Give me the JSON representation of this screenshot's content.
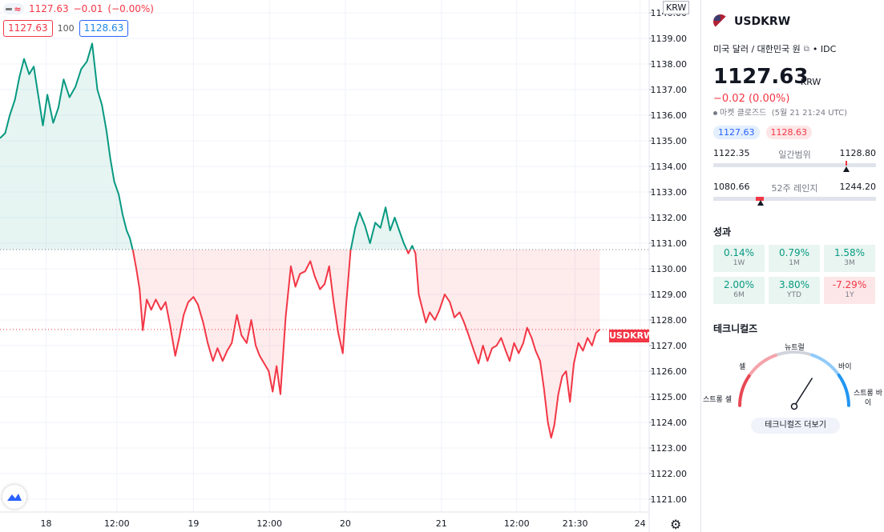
{
  "symbol": "USDKRW",
  "legend": {
    "price": "1127.63",
    "change": "−0.01",
    "change_pct": "(−0.00%)"
  },
  "quotes": {
    "bid": "1127.63",
    "size": "100",
    "ask": "1128.63"
  },
  "price_label": "USDKRW",
  "currency_label": "KRW",
  "colors": {
    "up": "#089981",
    "down": "#f23645",
    "bid_blue": "#2962ff"
  },
  "chart_data": {
    "type": "line",
    "baseline": 1130.75,
    "last_price": 1127.63,
    "ylim": [
      1120.5,
      1140.5
    ],
    "y_ticks": [
      "1121.00",
      "1122.00",
      "1123.00",
      "1124.00",
      "1125.00",
      "1126.00",
      "1127.00",
      "1128.00",
      "1129.00",
      "1130.00",
      "1131.00",
      "1132.00",
      "1133.00",
      "1134.00",
      "1135.00",
      "1136.00",
      "1137.00",
      "1138.00",
      "1139.00",
      "1140.00"
    ],
    "x_ticks": [
      "18",
      "12:00",
      "19",
      "12:00",
      "20",
      "21",
      "12:00",
      "21:30",
      "24"
    ],
    "x_range": [
      0,
      100
    ],
    "x_tick_positions": [
      7.1,
      18.0,
      29.8,
      41.5,
      53.2,
      68.0,
      79.6,
      88.6,
      98.6
    ],
    "points": [
      [
        0,
        1135.1
      ],
      [
        0.8,
        1135.3
      ],
      [
        1.5,
        1136.0
      ],
      [
        2.3,
        1136.6
      ],
      [
        3.0,
        1137.5
      ],
      [
        3.7,
        1138.2
      ],
      [
        4.5,
        1137.6
      ],
      [
        5.2,
        1137.9
      ],
      [
        6.0,
        1136.6
      ],
      [
        6.6,
        1135.6
      ],
      [
        7.3,
        1136.8
      ],
      [
        8.2,
        1135.7
      ],
      [
        9.0,
        1136.3
      ],
      [
        9.8,
        1137.4
      ],
      [
        10.7,
        1136.7
      ],
      [
        11.6,
        1137.1
      ],
      [
        12.5,
        1137.8
      ],
      [
        13.4,
        1138.1
      ],
      [
        14.2,
        1138.8
      ],
      [
        15.0,
        1137.0
      ],
      [
        15.7,
        1136.4
      ],
      [
        16.4,
        1135.4
      ],
      [
        17.0,
        1134.3
      ],
      [
        17.6,
        1133.4
      ],
      [
        18.3,
        1132.9
      ],
      [
        18.9,
        1132.1
      ],
      [
        19.5,
        1131.5
      ],
      [
        20.0,
        1131.2
      ],
      [
        20.5,
        1130.7
      ],
      [
        21.0,
        1130.0
      ],
      [
        21.5,
        1129.2
      ],
      [
        22.0,
        1127.6
      ],
      [
        22.6,
        1128.8
      ],
      [
        23.3,
        1128.4
      ],
      [
        24.0,
        1128.8
      ],
      [
        24.8,
        1128.4
      ],
      [
        25.5,
        1128.7
      ],
      [
        26.2,
        1127.8
      ],
      [
        27.0,
        1126.6
      ],
      [
        27.6,
        1127.3
      ],
      [
        28.3,
        1128.2
      ],
      [
        29.0,
        1128.7
      ],
      [
        29.8,
        1128.9
      ],
      [
        30.5,
        1128.6
      ],
      [
        31.3,
        1127.9
      ],
      [
        32.0,
        1127.1
      ],
      [
        32.8,
        1126.4
      ],
      [
        33.5,
        1126.9
      ],
      [
        34.3,
        1126.4
      ],
      [
        35.0,
        1126.8
      ],
      [
        35.7,
        1127.1
      ],
      [
        36.5,
        1128.2
      ],
      [
        37.2,
        1127.4
      ],
      [
        38.0,
        1127.1
      ],
      [
        38.7,
        1128.0
      ],
      [
        39.4,
        1127.0
      ],
      [
        40.0,
        1126.6
      ],
      [
        40.7,
        1126.3
      ],
      [
        41.4,
        1126.0
      ],
      [
        42.0,
        1125.2
      ],
      [
        42.6,
        1126.2
      ],
      [
        43.2,
        1125.1
      ],
      [
        44.0,
        1128.1
      ],
      [
        44.8,
        1130.1
      ],
      [
        45.5,
        1129.3
      ],
      [
        46.2,
        1129.8
      ],
      [
        47.0,
        1129.9
      ],
      [
        47.8,
        1130.3
      ],
      [
        48.5,
        1129.7
      ],
      [
        49.3,
        1129.2
      ],
      [
        50.0,
        1129.4
      ],
      [
        50.7,
        1130.1
      ],
      [
        51.4,
        1128.7
      ],
      [
        52.1,
        1127.5
      ],
      [
        52.8,
        1126.7
      ],
      [
        53.3,
        1128.5
      ],
      [
        54.0,
        1130.7
      ],
      [
        54.7,
        1131.6
      ],
      [
        55.4,
        1132.2
      ],
      [
        56.2,
        1131.7
      ],
      [
        57.0,
        1131.0
      ],
      [
        57.8,
        1131.8
      ],
      [
        58.6,
        1131.6
      ],
      [
        59.4,
        1132.4
      ],
      [
        60.1,
        1131.5
      ],
      [
        60.8,
        1132.0
      ],
      [
        61.5,
        1131.5
      ],
      [
        62.2,
        1131.0
      ],
      [
        62.9,
        1130.6
      ],
      [
        63.5,
        1130.9
      ],
      [
        64.0,
        1130.6
      ],
      [
        64.5,
        1129.0
      ],
      [
        65.0,
        1128.5
      ],
      [
        65.6,
        1127.9
      ],
      [
        66.2,
        1128.3
      ],
      [
        67.0,
        1128.0
      ],
      [
        67.7,
        1128.4
      ],
      [
        68.5,
        1129.0
      ],
      [
        69.3,
        1128.7
      ],
      [
        70.0,
        1128.1
      ],
      [
        70.8,
        1128.3
      ],
      [
        71.5,
        1127.9
      ],
      [
        72.2,
        1127.4
      ],
      [
        73.0,
        1126.8
      ],
      [
        73.7,
        1126.3
      ],
      [
        74.4,
        1127.0
      ],
      [
        75.1,
        1126.4
      ],
      [
        75.8,
        1126.9
      ],
      [
        76.5,
        1127.0
      ],
      [
        77.2,
        1127.3
      ],
      [
        77.9,
        1126.8
      ],
      [
        78.5,
        1126.4
      ],
      [
        79.2,
        1127.1
      ],
      [
        79.9,
        1126.7
      ],
      [
        80.6,
        1127.1
      ],
      [
        81.2,
        1127.7
      ],
      [
        81.9,
        1127.3
      ],
      [
        82.5,
        1126.8
      ],
      [
        83.2,
        1126.4
      ],
      [
        83.8,
        1125.3
      ],
      [
        84.4,
        1124.0
      ],
      [
        84.9,
        1123.4
      ],
      [
        85.4,
        1123.9
      ],
      [
        86.0,
        1125.1
      ],
      [
        86.6,
        1125.8
      ],
      [
        87.2,
        1126.0
      ],
      [
        87.8,
        1124.8
      ],
      [
        88.4,
        1126.3
      ],
      [
        89.1,
        1127.1
      ],
      [
        89.8,
        1126.8
      ],
      [
        90.5,
        1127.3
      ],
      [
        91.2,
        1127.0
      ],
      [
        91.8,
        1127.5
      ],
      [
        92.4,
        1127.63
      ]
    ]
  },
  "panel": {
    "symbol": "USDKRW",
    "description": "미국 달러 / 대한민국 원",
    "exchange": "• IDC",
    "price": "1127.63",
    "unit": "KRW",
    "change": "−0.02 (0.00%)",
    "market_status": "마켓 클로즈드",
    "timestamp": "(5월 21 21:24 UTC)",
    "bid": "1127.63",
    "ask": "1128.63",
    "day_range": {
      "low": "1122.35",
      "label": "일간범위",
      "high": "1128.80",
      "position": 0.82
    },
    "year_range": {
      "low": "1080.66",
      "label": "52주 레인지",
      "high": "1244.20",
      "position": 0.29
    },
    "performance_title": "성과",
    "performance": [
      {
        "value": "0.14%",
        "period": "1W",
        "dir": "up"
      },
      {
        "value": "0.79%",
        "period": "1M",
        "dir": "up"
      },
      {
        "value": "1.58%",
        "period": "3M",
        "dir": "up"
      },
      {
        "value": "2.00%",
        "period": "6M",
        "dir": "up"
      },
      {
        "value": "3.80%",
        "period": "YTD",
        "dir": "up"
      },
      {
        "value": "-7.29%",
        "period": "1Y",
        "dir": "down"
      }
    ],
    "technicals_title": "테크니컬즈",
    "gauge": {
      "neutral": "뉴트럴",
      "sell": "셀",
      "buy": "바이",
      "strong_sell": "스트롱 셀",
      "strong_buy": "스트롱 바이",
      "needle": 0.68
    },
    "technicals_button": "테크니컬즈 더보기"
  }
}
